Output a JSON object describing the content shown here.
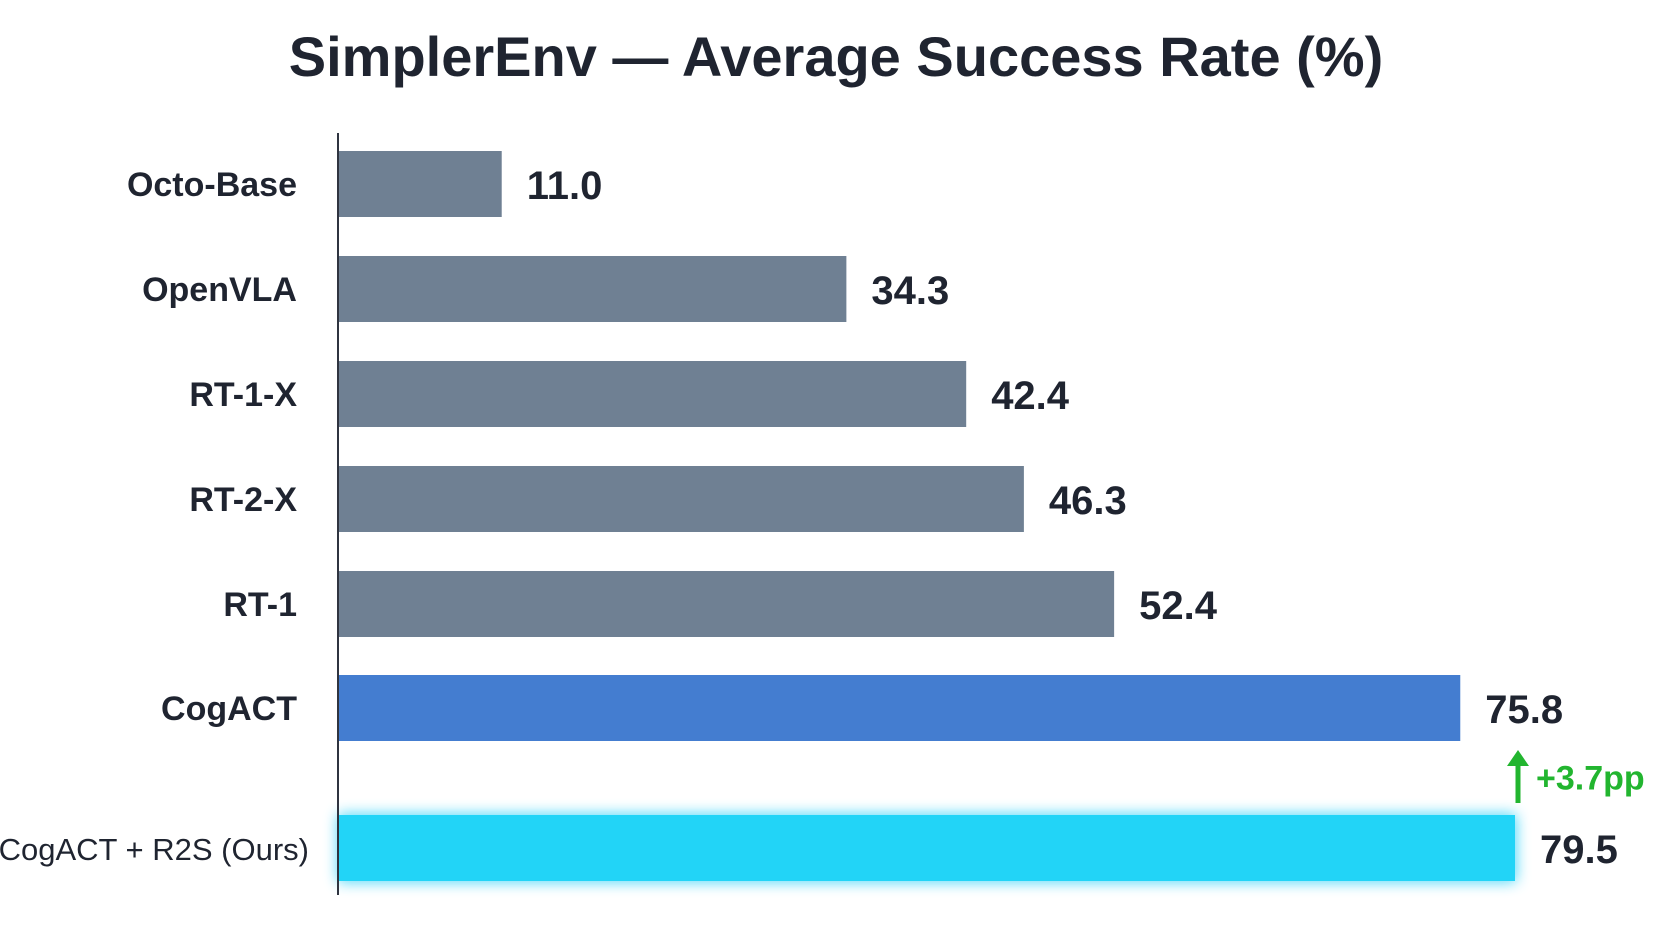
{
  "chart_data": {
    "type": "bar",
    "orientation": "horizontal",
    "title": "SimplerEnv — Average Success Rate (%)",
    "xlabel": "",
    "ylabel": "",
    "xlim": [
      0,
      79.5
    ],
    "grid": false,
    "legend": "none",
    "categories": [
      "Octo-Base",
      "OpenVLA",
      "RT-1-X",
      "RT-2-X",
      "RT-1",
      "CogACT",
      "CogACT + R2S (Ours)"
    ],
    "values": [
      11.0,
      34.3,
      42.4,
      46.3,
      52.4,
      75.8,
      79.5
    ],
    "value_labels": [
      "11.0",
      "34.3",
      "42.4",
      "46.3",
      "52.4",
      "75.8",
      "79.5"
    ],
    "bar_colors": [
      "#6f8093",
      "#6f8093",
      "#6f8093",
      "#6f8093",
      "#6f8093",
      "#447dd0",
      "#22d4f7"
    ],
    "highlight_glow_color": "#7fe3fb",
    "annotation": {
      "text": "+3.7pp",
      "color": "#22b52f",
      "icon": "up-arrow-icon"
    }
  },
  "colors": {
    "text": "#1f2430",
    "axis": "#2f3440"
  }
}
